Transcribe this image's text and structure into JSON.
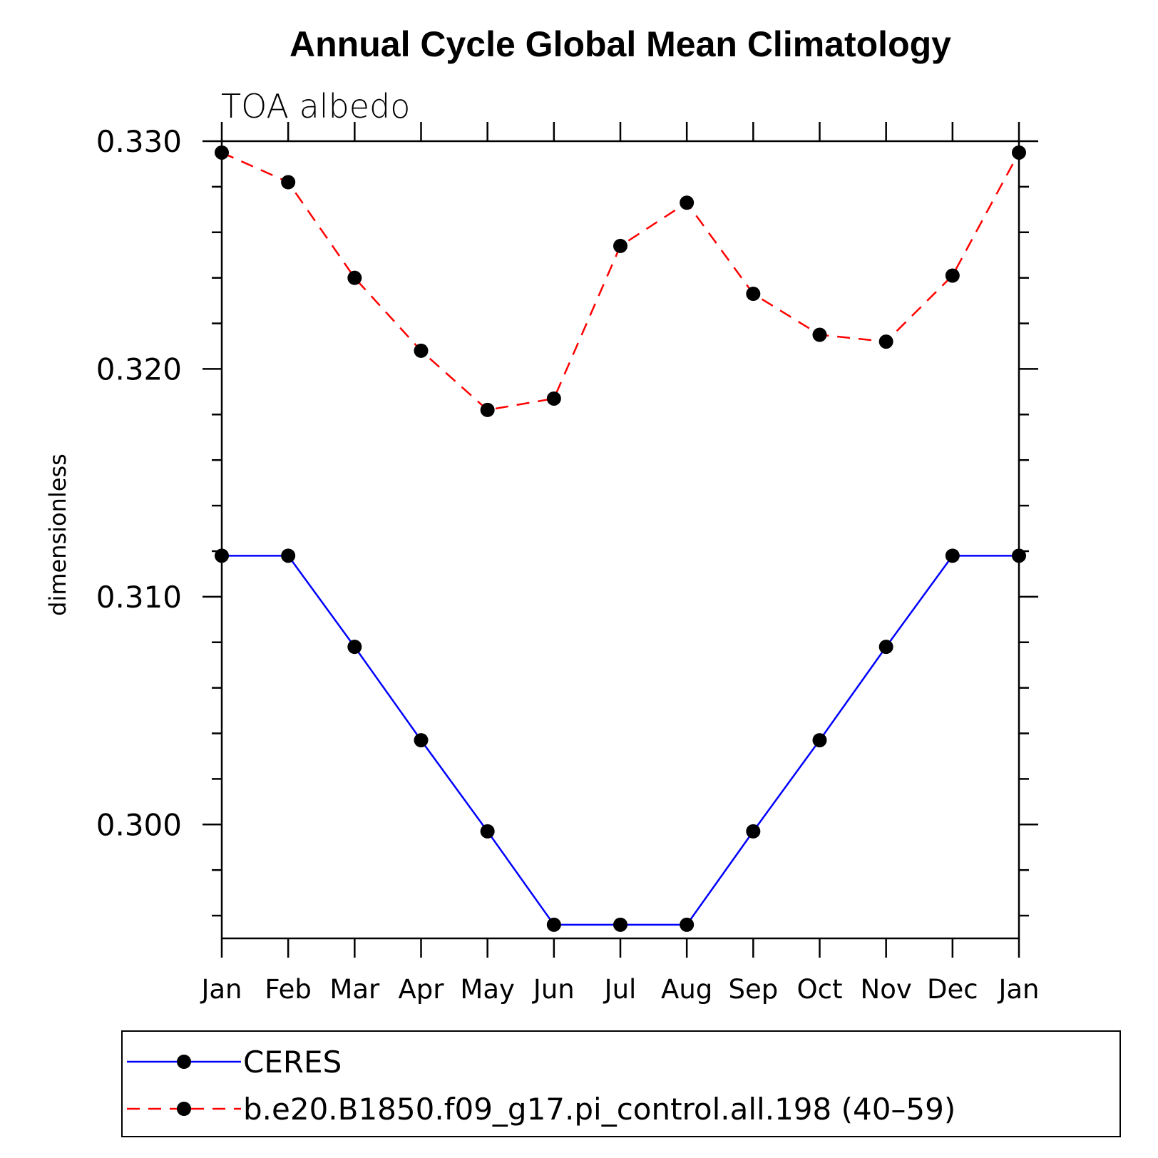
{
  "chart_data": {
    "type": "line",
    "title": "Annual Cycle Global Mean Climatology",
    "subtitle": "TOA albedo",
    "xlabel": "",
    "ylabel": "dimensionless",
    "categories": [
      "Jan",
      "Feb",
      "Mar",
      "Apr",
      "May",
      "Jun",
      "Jul",
      "Aug",
      "Sep",
      "Oct",
      "Nov",
      "Dec",
      "Jan"
    ],
    "ylim": [
      0.295,
      0.33
    ],
    "yticks": [
      "0.300",
      "0.310",
      "0.320",
      "0.330"
    ],
    "ytick_values": [
      0.3,
      0.31,
      0.32,
      0.33
    ],
    "series": [
      {
        "name": "CERES",
        "color": "#0000ff",
        "dash": "solid",
        "values": [
          0.3118,
          0.3118,
          0.3078,
          0.3037,
          0.2997,
          0.2956,
          0.2956,
          0.2956,
          0.2997,
          0.3037,
          0.3078,
          0.3118,
          0.3118
        ]
      },
      {
        "name": "b.e20.B1850.f09_g17.pi_control.all.198 (40–59)",
        "color": "#ff0000",
        "dash": "dashed",
        "values": [
          0.3295,
          0.3282,
          0.324,
          0.3208,
          0.3182,
          0.3187,
          0.3254,
          0.3273,
          0.3233,
          0.3215,
          0.3212,
          0.3241,
          0.3295
        ]
      }
    ],
    "legend": {
      "placement": "bottom"
    }
  }
}
